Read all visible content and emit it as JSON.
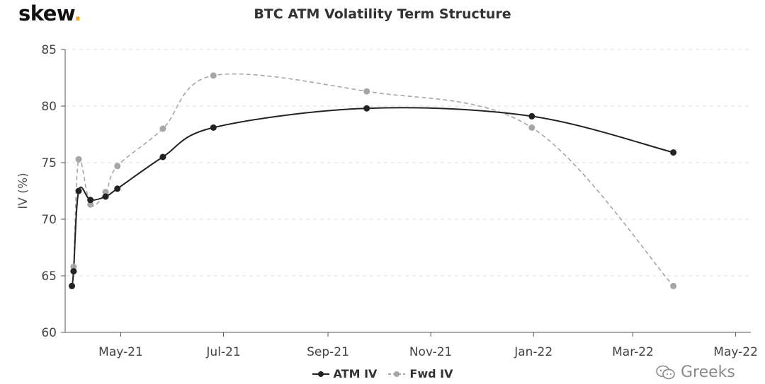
{
  "brand": {
    "name": "skew",
    "dot": "."
  },
  "watermark": {
    "text": "Greeks",
    "icon": "wechat-icon"
  },
  "colors": {
    "atm": "#222222",
    "fwd": "#a6a6a6",
    "grid": "#dcdcdc",
    "axis": "#555555",
    "brand_dot": "#f5a623"
  },
  "chart_data": {
    "type": "line",
    "title": "BTC ATM Volatility Term Structure",
    "xlabel": "",
    "ylabel": "IV (%)",
    "ylim": [
      60,
      85
    ],
    "yticks": [
      60,
      65,
      70,
      75,
      80,
      85
    ],
    "xlim": [
      "2021-03-29",
      "2022-05-10"
    ],
    "xticks": [
      {
        "date": "2021-05-01",
        "label": "May-21"
      },
      {
        "date": "2021-07-01",
        "label": "Jul-21"
      },
      {
        "date": "2021-09-01",
        "label": "Sep-21"
      },
      {
        "date": "2021-11-01",
        "label": "Nov-21"
      },
      {
        "date": "2022-01-01",
        "label": "Jan-22"
      },
      {
        "date": "2022-03-01",
        "label": "Mar-22"
      },
      {
        "date": "2022-05-01",
        "label": "May-22"
      }
    ],
    "grid": {
      "horizontal": true,
      "style": "dashed"
    },
    "legend_position": "bottom-center",
    "series": [
      {
        "name": "ATM IV",
        "color": "#222222",
        "dashed": false,
        "points": [
          {
            "x": "2021-04-02",
            "y": 64.1
          },
          {
            "x": "2021-04-03",
            "y": 65.4
          },
          {
            "x": "2021-04-06",
            "y": 72.5
          },
          {
            "x": "2021-04-13",
            "y": 71.7
          },
          {
            "x": "2021-04-22",
            "y": 72.0
          },
          {
            "x": "2021-04-29",
            "y": 72.7
          },
          {
            "x": "2021-05-26",
            "y": 75.5
          },
          {
            "x": "2021-06-25",
            "y": 78.1
          },
          {
            "x": "2021-09-24",
            "y": 79.8
          },
          {
            "x": "2021-12-31",
            "y": 79.1
          },
          {
            "x": "2022-03-25",
            "y": 75.9
          }
        ]
      },
      {
        "name": "Fwd IV",
        "color": "#a6a6a6",
        "dashed": true,
        "points": [
          {
            "x": "2021-04-02",
            "y": 64.1
          },
          {
            "x": "2021-04-03",
            "y": 65.8
          },
          {
            "x": "2021-04-06",
            "y": 75.3
          },
          {
            "x": "2021-04-13",
            "y": 71.3
          },
          {
            "x": "2021-04-22",
            "y": 72.4
          },
          {
            "x": "2021-04-29",
            "y": 74.7
          },
          {
            "x": "2021-05-26",
            "y": 78.0
          },
          {
            "x": "2021-06-25",
            "y": 82.7
          },
          {
            "x": "2021-09-24",
            "y": 81.3
          },
          {
            "x": "2021-12-31",
            "y": 78.1
          },
          {
            "x": "2022-03-25",
            "y": 64.1
          }
        ]
      }
    ]
  }
}
